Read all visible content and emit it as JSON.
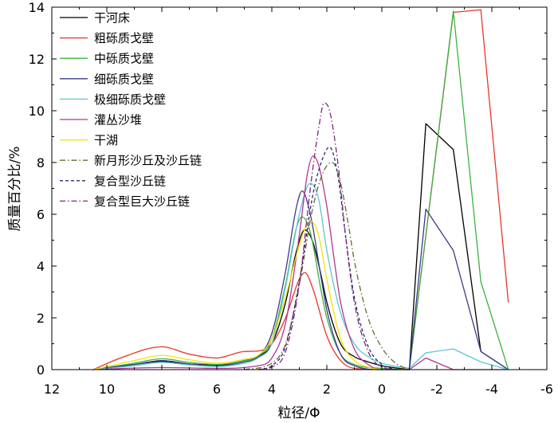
{
  "chart_data": {
    "type": "line",
    "xlabel": "粒径/Φ",
    "ylabel": "质量百分比/%",
    "xlim": [
      12,
      -6
    ],
    "ylim": [
      0,
      14
    ],
    "x_reversed": true,
    "xticks": [
      12,
      10,
      8,
      6,
      4,
      2,
      0,
      -2,
      -4,
      -6
    ],
    "yticks": [
      0,
      2,
      4,
      6,
      8,
      10,
      12,
      14
    ],
    "grid": false,
    "legend": "top-left",
    "series": [
      {
        "name": "干河床",
        "color": "#000000",
        "style": "solid",
        "points": [
          [
            10.5,
            0
          ],
          [
            9,
            0.2
          ],
          [
            8,
            0.32
          ],
          [
            7,
            0.22
          ],
          [
            6,
            0.18
          ],
          [
            5,
            0.35
          ],
          [
            4.5,
            0.5
          ],
          [
            4,
            1.0
          ],
          [
            3.5,
            2.6
          ],
          [
            3.1,
            4.6
          ],
          [
            2.8,
            5.4
          ],
          [
            2.5,
            4.9
          ],
          [
            2.2,
            3.6
          ],
          [
            2,
            2.6
          ],
          [
            1.5,
            1.0
          ],
          [
            1,
            0.5
          ],
          [
            0.5,
            0.3
          ],
          [
            0,
            0.15
          ],
          [
            -1,
            0
          ],
          [
            -1.6,
            9.5
          ],
          [
            -2.6,
            8.5
          ],
          [
            -3.6,
            0.7
          ],
          [
            -4.6,
            0
          ]
        ]
      },
      {
        "name": "粗砾质戈壁",
        "color": "#e8342c",
        "style": "solid",
        "points": [
          [
            10.5,
            0
          ],
          [
            9.5,
            0.45
          ],
          [
            8,
            0.88
          ],
          [
            7,
            0.6
          ],
          [
            6,
            0.45
          ],
          [
            5,
            0.7
          ],
          [
            4.5,
            0.72
          ],
          [
            4,
            1.0
          ],
          [
            3.5,
            2.0
          ],
          [
            3,
            3.5
          ],
          [
            2.8,
            3.75
          ],
          [
            2.5,
            3.1
          ],
          [
            2,
            1.3
          ],
          [
            1.5,
            0.35
          ],
          [
            1,
            0.05
          ],
          [
            0,
            0
          ],
          [
            -1,
            0
          ],
          [
            -2.6,
            13.8
          ],
          [
            -3.6,
            13.9
          ],
          [
            -4.6,
            2.6
          ]
        ]
      },
      {
        "name": "中砾质戈壁",
        "color": "#3bb33f",
        "style": "solid",
        "points": [
          [
            10.5,
            0
          ],
          [
            9,
            0.25
          ],
          [
            8,
            0.42
          ],
          [
            7,
            0.28
          ],
          [
            6,
            0.2
          ],
          [
            5,
            0.35
          ],
          [
            4.5,
            0.5
          ],
          [
            4,
            1.2
          ],
          [
            3.5,
            3.3
          ],
          [
            3.1,
            5.5
          ],
          [
            2.9,
            5.9
          ],
          [
            2.6,
            5.3
          ],
          [
            2.2,
            3.0
          ],
          [
            2,
            2.0
          ],
          [
            1.5,
            0.6
          ],
          [
            1,
            0.2
          ],
          [
            0,
            0.05
          ],
          [
            -1,
            0
          ],
          [
            -2.6,
            13.85
          ],
          [
            -3.6,
            3.4
          ],
          [
            -4.6,
            0
          ]
        ]
      },
      {
        "name": "细砾质戈壁",
        "color": "#3b3a8e",
        "style": "solid",
        "points": [
          [
            10.5,
            0
          ],
          [
            9,
            0.2
          ],
          [
            8,
            0.35
          ],
          [
            7,
            0.22
          ],
          [
            6,
            0.15
          ],
          [
            5,
            0.3
          ],
          [
            4.5,
            0.5
          ],
          [
            4,
            1.4
          ],
          [
            3.5,
            3.8
          ],
          [
            3.1,
            6.3
          ],
          [
            2.9,
            6.9
          ],
          [
            2.6,
            6.0
          ],
          [
            2.2,
            3.5
          ],
          [
            2,
            2.3
          ],
          [
            1.5,
            0.6
          ],
          [
            1,
            0.15
          ],
          [
            0,
            0
          ],
          [
            -1,
            0
          ],
          [
            -1.6,
            6.2
          ],
          [
            -2.6,
            4.6
          ],
          [
            -3.6,
            0.7
          ],
          [
            -4.6,
            0
          ]
        ]
      },
      {
        "name": "极细砾质戈壁",
        "color": "#5cc6d8",
        "style": "solid",
        "points": [
          [
            10.5,
            0
          ],
          [
            9,
            0.15
          ],
          [
            8,
            0.28
          ],
          [
            7,
            0.18
          ],
          [
            6,
            0.12
          ],
          [
            5,
            0.25
          ],
          [
            4.5,
            0.45
          ],
          [
            4,
            1.0
          ],
          [
            3.5,
            3.2
          ],
          [
            3,
            6.0
          ],
          [
            2.6,
            7.2
          ],
          [
            2.3,
            6.6
          ],
          [
            2,
            4.6
          ],
          [
            1.5,
            2.2
          ],
          [
            1,
            1.0
          ],
          [
            0.5,
            0.5
          ],
          [
            0,
            0.25
          ],
          [
            -1,
            0.05
          ],
          [
            -1.6,
            0.65
          ],
          [
            -2.6,
            0.8
          ],
          [
            -3.6,
            0.3
          ],
          [
            -4.6,
            0
          ]
        ]
      },
      {
        "name": "灌丛沙堆",
        "color": "#b0378f",
        "style": "solid",
        "points": [
          [
            10.5,
            0
          ],
          [
            8,
            0.08
          ],
          [
            6,
            0.05
          ],
          [
            4.5,
            0.15
          ],
          [
            4,
            0.45
          ],
          [
            3.5,
            1.8
          ],
          [
            3,
            5.2
          ],
          [
            2.7,
            7.6
          ],
          [
            2.5,
            8.25
          ],
          [
            2.3,
            7.9
          ],
          [
            2,
            6.3
          ],
          [
            1.7,
            4.0
          ],
          [
            1.5,
            2.6
          ],
          [
            1,
            0.8
          ],
          [
            0.5,
            0.2
          ],
          [
            0,
            0
          ],
          [
            -1,
            0
          ],
          [
            -1.6,
            0.45
          ],
          [
            -2.6,
            0
          ],
          [
            -4.6,
            0
          ]
        ]
      },
      {
        "name": "干湖",
        "color": "#f4e400",
        "style": "solid",
        "points": [
          [
            10.5,
            0
          ],
          [
            9,
            0.35
          ],
          [
            8,
            0.55
          ],
          [
            7,
            0.38
          ],
          [
            6,
            0.25
          ],
          [
            5,
            0.4
          ],
          [
            4.5,
            0.55
          ],
          [
            4,
            1.2
          ],
          [
            3.5,
            2.8
          ],
          [
            3,
            4.8
          ],
          [
            2.6,
            5.75
          ],
          [
            2.3,
            5.2
          ],
          [
            2,
            3.5
          ],
          [
            1.5,
            1.2
          ],
          [
            1,
            0.35
          ],
          [
            0.5,
            0.1
          ],
          [
            0,
            0
          ],
          [
            -1,
            0
          ]
        ]
      },
      {
        "name": "新月形沙丘及沙丘链",
        "color": "#6b6a2e",
        "style": "dashdot",
        "points": [
          [
            5,
            0
          ],
          [
            4,
            0.25
          ],
          [
            3.5,
            1.0
          ],
          [
            3,
            3.3
          ],
          [
            2.5,
            6.3
          ],
          [
            2.1,
            7.7
          ],
          [
            1.8,
            8.0
          ],
          [
            1.5,
            7.2
          ],
          [
            1.2,
            5.5
          ],
          [
            1,
            4.2
          ],
          [
            0.5,
            2.0
          ],
          [
            0,
            0.85
          ],
          [
            -0.5,
            0.25
          ],
          [
            -1,
            0
          ]
        ]
      },
      {
        "name": "复合型沙丘链",
        "color": "#2b2a6b",
        "style": "dashed",
        "points": [
          [
            4.5,
            0
          ],
          [
            4,
            0.15
          ],
          [
            3.5,
            0.9
          ],
          [
            3,
            3.4
          ],
          [
            2.5,
            6.8
          ],
          [
            2.1,
            8.3
          ],
          [
            1.9,
            8.6
          ],
          [
            1.6,
            7.5
          ],
          [
            1.3,
            5.0
          ],
          [
            1,
            2.8
          ],
          [
            0.5,
            0.9
          ],
          [
            0,
            0.2
          ],
          [
            -0.5,
            0
          ]
        ]
      },
      {
        "name": "复合型巨大沙丘链",
        "color": "#7a2a78",
        "style": "dashdot",
        "points": [
          [
            4.5,
            0
          ],
          [
            4,
            0.1
          ],
          [
            3.5,
            0.7
          ],
          [
            3,
            3.3
          ],
          [
            2.6,
            7.0
          ],
          [
            2.3,
            9.3
          ],
          [
            2.1,
            10.3
          ],
          [
            1.9,
            10.0
          ],
          [
            1.6,
            8.0
          ],
          [
            1.3,
            5.0
          ],
          [
            1,
            2.6
          ],
          [
            0.5,
            0.7
          ],
          [
            0,
            0.1
          ],
          [
            -0.5,
            0
          ]
        ]
      }
    ]
  }
}
